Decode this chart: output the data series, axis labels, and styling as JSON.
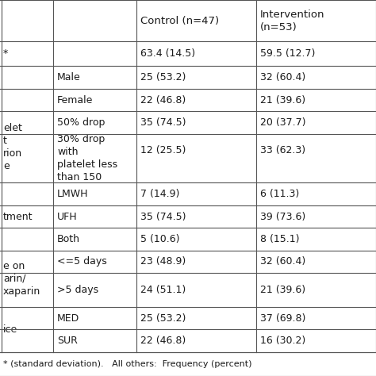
{
  "col_headers": [
    "",
    "",
    "Control (n=47)",
    "Intervention\n(n=53)"
  ],
  "rows": [
    [
      "*",
      "",
      "63.4 (14.5)",
      "59.5 (12.7)"
    ],
    [
      "",
      "Male",
      "25 (53.2)",
      "32 (60.4)"
    ],
    [
      "",
      "Female",
      "22 (46.8)",
      "21 (39.6)"
    ],
    [
      "elet\nt\nrion\ne",
      "50% drop",
      "35 (74.5)",
      "20 (37.7)"
    ],
    [
      "",
      "30% drop\nwith\nplatelet less\nthan 150",
      "12 (25.5)",
      "33 (62.3)"
    ],
    [
      "tment",
      "LMWH",
      "7 (14.9)",
      "6 (11.3)"
    ],
    [
      "",
      "UFH",
      "35 (74.5)",
      "39 (73.6)"
    ],
    [
      "",
      "Both",
      "5 (10.6)",
      "8 (15.1)"
    ],
    [
      "e on\narin/\nxaparin",
      "<=5 days",
      "23 (48.9)",
      "32 (60.4)"
    ],
    [
      "",
      ">5 days",
      "24 (51.1)",
      "21 (39.6)"
    ],
    [
      "ice",
      "MED",
      "25 (53.2)",
      "37 (69.8)"
    ],
    [
      "",
      "SUR",
      "22 (46.8)",
      "16 (30.2)"
    ]
  ],
  "footer": "* (standard deviation).   All others:  Frequency (percent)",
  "text_color": "#1a1a1a",
  "line_color": "#555555",
  "font_size": 9.0,
  "header_font_size": 9.5
}
